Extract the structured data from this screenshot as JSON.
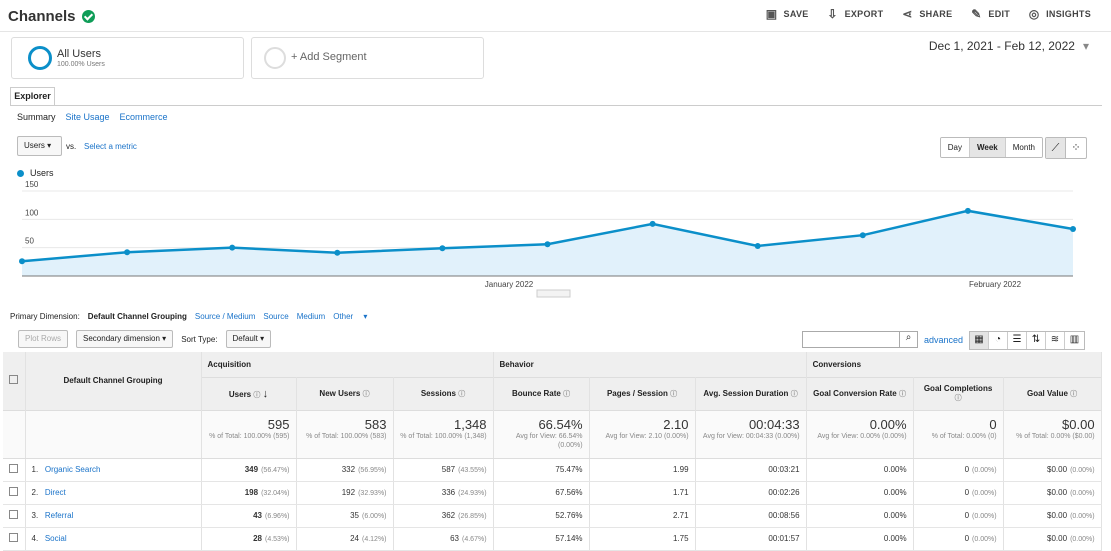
{
  "header": {
    "title": "Channels",
    "actions": [
      "SAVE",
      "EXPORT",
      "SHARE",
      "EDIT",
      "INSIGHTS"
    ]
  },
  "segments": [
    {
      "title": "All Users",
      "subtitle": "100.00% Users"
    },
    {
      "title": "+ Add Segment"
    }
  ],
  "date_range": "Dec 1, 2021 - Feb 12, 2022",
  "explorer_tab": "Explorer",
  "subnav": [
    "Summary",
    "Site Usage",
    "Ecommerce"
  ],
  "metric_select": "Users",
  "vs_label": "vs.",
  "select_metric": "Select a metric",
  "granularity": [
    "Day",
    "Week",
    "Month"
  ],
  "chart_data": {
    "type": "line",
    "series": [
      {
        "name": "Users",
        "values": [
          26,
          42,
          50,
          41,
          49,
          56,
          92,
          53,
          72,
          115,
          83
        ]
      }
    ],
    "y_ticks": [
      150,
      100,
      50
    ],
    "x_labels": [
      "January 2022",
      "February 2022"
    ],
    "ylim": [
      0,
      150
    ]
  },
  "primary_dimension": {
    "label": "Primary Dimension:",
    "options": [
      "Default Channel Grouping",
      "Source / Medium",
      "Source",
      "Medium",
      "Other"
    ]
  },
  "toolbar": {
    "plot_rows": "Plot Rows",
    "secondary": "Secondary dimension",
    "sort_label": "Sort Type:",
    "sort": "Default",
    "advanced": "advanced"
  },
  "table": {
    "group_headers": [
      "Acquisition",
      "Behavior",
      "Conversions"
    ],
    "first_header": "Default Channel Grouping",
    "columns": [
      "Users",
      "New Users",
      "Sessions",
      "Bounce Rate",
      "Pages / Session",
      "Avg. Session Duration",
      "Goal Conversion Rate",
      "Goal Completions",
      "Goal Value"
    ],
    "totals": [
      {
        "value": "595",
        "note": "% of Total: 100.00% (595)"
      },
      {
        "value": "583",
        "note": "% of Total: 100.00% (583)"
      },
      {
        "value": "1,348",
        "note": "% of Total: 100.00% (1,348)"
      },
      {
        "value": "66.54%",
        "note": "Avg for View: 66.54% (0.00%)"
      },
      {
        "value": "2.10",
        "note": "Avg for View: 2.10 (0.00%)"
      },
      {
        "value": "00:04:33",
        "note": "Avg for View: 00:04:33 (0.00%)"
      },
      {
        "value": "0.00%",
        "note": "Avg for View: 0.00% (0.00%)"
      },
      {
        "value": "0",
        "note": "% of Total: 0.00% (0)"
      },
      {
        "value": "$0.00",
        "note": "% of Total: 0.00% ($0.00)"
      }
    ],
    "rows": [
      {
        "n": "1.",
        "name": "Organic Search",
        "users": "349",
        "users_pct": "(56.47%)",
        "new": "332",
        "new_pct": "(56.95%)",
        "sessions": "587",
        "sessions_pct": "(43.55%)",
        "bounce": "75.47%",
        "pages": "1.99",
        "duration": "00:03:21",
        "conv": "0.00%",
        "comp": "0",
        "comp_pct": "(0.00%)",
        "value": "$0.00",
        "value_pct": "(0.00%)"
      },
      {
        "n": "2.",
        "name": "Direct",
        "users": "198",
        "users_pct": "(32.04%)",
        "new": "192",
        "new_pct": "(32.93%)",
        "sessions": "336",
        "sessions_pct": "(24.93%)",
        "bounce": "67.56%",
        "pages": "1.71",
        "duration": "00:02:26",
        "conv": "0.00%",
        "comp": "0",
        "comp_pct": "(0.00%)",
        "value": "$0.00",
        "value_pct": "(0.00%)"
      },
      {
        "n": "3.",
        "name": "Referral",
        "users": "43",
        "users_pct": "(6.96%)",
        "new": "35",
        "new_pct": "(6.00%)",
        "sessions": "362",
        "sessions_pct": "(26.85%)",
        "bounce": "52.76%",
        "pages": "2.71",
        "duration": "00:08:56",
        "conv": "0.00%",
        "comp": "0",
        "comp_pct": "(0.00%)",
        "value": "$0.00",
        "value_pct": "(0.00%)"
      },
      {
        "n": "4.",
        "name": "Social",
        "users": "28",
        "users_pct": "(4.53%)",
        "new": "24",
        "new_pct": "(4.12%)",
        "sessions": "63",
        "sessions_pct": "(4.67%)",
        "bounce": "57.14%",
        "pages": "1.75",
        "duration": "00:01:57",
        "conv": "0.00%",
        "comp": "0",
        "comp_pct": "(0.00%)",
        "value": "$0.00",
        "value_pct": "(0.00%)"
      }
    ]
  }
}
